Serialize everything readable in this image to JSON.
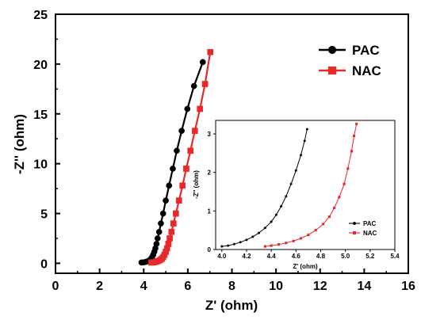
{
  "chart_data": [
    {
      "type": "line",
      "panel": "main",
      "xlabel": "Z' (ohm)",
      "ylabel": "-Z'' (ohm)",
      "xlim": [
        0,
        16
      ],
      "ylim": [
        -1,
        25
      ],
      "xticks": [
        "0",
        "2",
        "4",
        "6",
        "8",
        "10",
        "12",
        "14",
        "16"
      ],
      "yticks": [
        "0",
        "5",
        "10",
        "15",
        "20",
        "25"
      ],
      "legend_position": "top-right",
      "series": [
        {
          "name": "PAC",
          "color": "#000000",
          "marker": "circle",
          "points": [
            [
              3.9,
              0.08
            ],
            [
              4.0,
              0.1
            ],
            [
              4.1,
              0.15
            ],
            [
              4.2,
              0.22
            ],
            [
              4.27,
              0.32
            ],
            [
              4.33,
              0.45
            ],
            [
              4.38,
              0.62
            ],
            [
              4.43,
              0.85
            ],
            [
              4.48,
              1.15
            ],
            [
              4.53,
              1.5
            ],
            [
              4.58,
              1.95
            ],
            [
              4.63,
              2.5
            ],
            [
              4.7,
              3.15
            ],
            [
              4.78,
              4.0
            ],
            [
              4.88,
              5.0
            ],
            [
              5.0,
              6.3
            ],
            [
              5.15,
              7.8
            ],
            [
              5.32,
              9.5
            ],
            [
              5.5,
              11.3
            ],
            [
              5.72,
              13.3
            ],
            [
              5.98,
              15.5
            ],
            [
              6.28,
              17.8
            ],
            [
              6.68,
              20.2
            ]
          ]
        },
        {
          "name": "NAC",
          "color": "#e8292a",
          "marker": "square",
          "points": [
            [
              4.35,
              0.08
            ],
            [
              4.45,
              0.1
            ],
            [
              4.55,
              0.15
            ],
            [
              4.65,
              0.22
            ],
            [
              4.74,
              0.32
            ],
            [
              4.82,
              0.45
            ],
            [
              4.88,
              0.62
            ],
            [
              4.94,
              0.85
            ],
            [
              5.0,
              1.15
            ],
            [
              5.06,
              1.5
            ],
            [
              5.12,
              1.95
            ],
            [
              5.18,
              2.5
            ],
            [
              5.26,
              3.15
            ],
            [
              5.35,
              4.0
            ],
            [
              5.46,
              5.0
            ],
            [
              5.6,
              6.3
            ],
            [
              5.76,
              7.8
            ],
            [
              5.93,
              9.5
            ],
            [
              6.12,
              11.3
            ],
            [
              6.32,
              13.3
            ],
            [
              6.55,
              15.5
            ],
            [
              6.78,
              18.0
            ],
            [
              7.02,
              21.2
            ]
          ]
        }
      ]
    },
    {
      "type": "line",
      "panel": "inset",
      "xlabel": "Z' (ohm)",
      "ylabel": "-Z'' (ohm)",
      "xlim": [
        3.95,
        5.4
      ],
      "ylim": [
        0,
        3.35
      ],
      "xticks": [
        "4.0",
        "4.2",
        "4.4",
        "4.6",
        "4.8",
        "5.0",
        "5.2",
        "5.4"
      ],
      "yticks": [
        "0",
        "1",
        "2",
        "3"
      ],
      "legend_position": "bottom-right",
      "series": [
        {
          "name": "PAC",
          "color": "#000000",
          "marker": "circle",
          "points": [
            [
              4.0,
              0.08
            ],
            [
              4.05,
              0.1
            ],
            [
              4.1,
              0.14
            ],
            [
              4.15,
              0.19
            ],
            [
              4.2,
              0.25
            ],
            [
              4.25,
              0.33
            ],
            [
              4.3,
              0.43
            ],
            [
              4.35,
              0.56
            ],
            [
              4.4,
              0.72
            ],
            [
              4.44,
              0.9
            ],
            [
              4.48,
              1.12
            ],
            [
              4.52,
              1.38
            ],
            [
              4.56,
              1.7
            ],
            [
              4.6,
              2.05
            ],
            [
              4.64,
              2.45
            ],
            [
              4.67,
              2.82
            ],
            [
              4.69,
              3.12
            ]
          ]
        },
        {
          "name": "NAC",
          "color": "#e8292a",
          "marker": "square",
          "points": [
            [
              4.35,
              0.08
            ],
            [
              4.4,
              0.1
            ],
            [
              4.46,
              0.13
            ],
            [
              4.52,
              0.17
            ],
            [
              4.58,
              0.22
            ],
            [
              4.64,
              0.29
            ],
            [
              4.7,
              0.38
            ],
            [
              4.76,
              0.5
            ],
            [
              4.82,
              0.66
            ],
            [
              4.87,
              0.85
            ],
            [
              4.91,
              1.08
            ],
            [
              4.95,
              1.36
            ],
            [
              4.99,
              1.7
            ],
            [
              5.02,
              2.1
            ],
            [
              5.05,
              2.55
            ],
            [
              5.07,
              2.95
            ],
            [
              5.09,
              3.26
            ]
          ]
        }
      ]
    }
  ]
}
